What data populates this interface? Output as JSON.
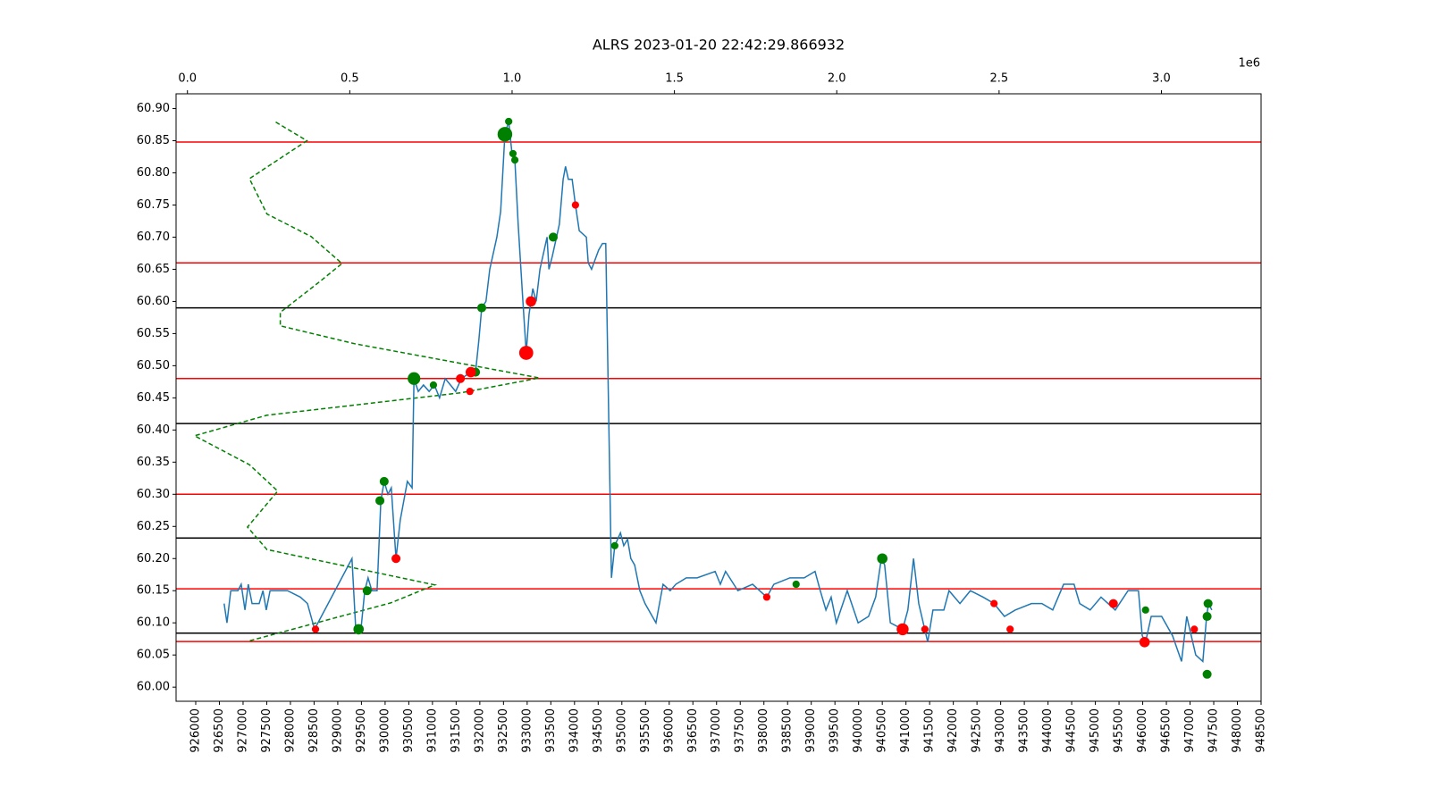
{
  "chart_data": {
    "type": "line",
    "title": "ALRS 2023-01-20 22:42:29.866932",
    "xlim": [
      925585,
      948500
    ],
    "xticks": [
      926000,
      926500,
      927000,
      927500,
      928000,
      928500,
      929000,
      929500,
      930000,
      930500,
      931000,
      931500,
      932000,
      932500,
      933000,
      933500,
      934000,
      934500,
      935000,
      935500,
      936000,
      936500,
      937000,
      937500,
      938000,
      938500,
      939000,
      939500,
      940000,
      940500,
      941000,
      941500,
      942000,
      942500,
      943000,
      943500,
      944000,
      944500,
      945000,
      945500,
      946000,
      946500,
      947000,
      947500,
      948000,
      948500
    ],
    "ylim": [
      59.978,
      60.923
    ],
    "yticks": [
      {
        "value": 60.0,
        "label": "60.00"
      },
      {
        "value": 60.05,
        "label": "60.05"
      },
      {
        "value": 60.1,
        "label": "60.10"
      },
      {
        "value": 60.15,
        "label": "60.15"
      },
      {
        "value": 60.2,
        "label": "60.20"
      },
      {
        "value": 60.25,
        "label": "60.25"
      },
      {
        "value": 60.3,
        "label": "60.30"
      },
      {
        "value": 60.35,
        "label": "60.35"
      },
      {
        "value": 60.4,
        "label": "60.40"
      },
      {
        "value": 60.45,
        "label": "60.45"
      },
      {
        "value": 60.5,
        "label": "60.50"
      },
      {
        "value": 60.55,
        "label": "60.55"
      },
      {
        "value": 60.6,
        "label": "60.60"
      },
      {
        "value": 60.65,
        "label": "60.65"
      },
      {
        "value": 60.7,
        "label": "60.70"
      },
      {
        "value": 60.75,
        "label": "60.75"
      },
      {
        "value": 60.8,
        "label": "60.80"
      },
      {
        "value": 60.85,
        "label": "60.85"
      },
      {
        "value": 60.9,
        "label": "60.90"
      }
    ],
    "x2lim": [
      -0.035,
      3.307
    ],
    "x2ticks": [
      {
        "value": 0,
        "label": "0.0"
      },
      0.5,
      {
        "value": 1,
        "label": "1.0"
      },
      1.5,
      {
        "value": 2,
        "label": "2.0"
      },
      2.5,
      {
        "value": 3,
        "label": "3.0"
      }
    ],
    "x2_offset_label": "1e6",
    "series": [
      {
        "color": "#1f77b4",
        "x": [
          926600,
          926660,
          926740,
          926890,
          926960,
          927040,
          927110,
          927190,
          927340,
          927420,
          927490,
          927570,
          927720,
          927940,
          928210,
          928360,
          928510,
          929300,
          929380,
          929490,
          929570,
          929640,
          929720,
          929830,
          929910,
          929980,
          930060,
          930130,
          930230,
          930320,
          930470,
          930570,
          930610,
          930700,
          930810,
          930930,
          931040,
          931150,
          931270,
          931490,
          931610,
          931810,
          931910,
          931980,
          932040,
          932130,
          932210,
          932360,
          932440,
          932530,
          932610,
          932680,
          932740,
          932810,
          932910,
          932980,
          933040,
          933120,
          933190,
          933270,
          933420,
          933460,
          933530,
          933680,
          933760,
          933810,
          933870,
          933950,
          934020,
          934100,
          934250,
          934290,
          934360,
          934510,
          934590,
          934660,
          934780,
          934850,
          934970,
          935040,
          935120,
          935190,
          935270,
          935380,
          935490,
          935720,
          935870,
          936020,
          936140,
          936360,
          936590,
          936970,
          937080,
          937190,
          937450,
          937760,
          938060,
          938210,
          938550,
          938850,
          939080,
          939190,
          939310,
          939420,
          939530,
          939760,
          939990,
          940210,
          940360,
          940480,
          940550,
          940670,
          940930,
          941040,
          941160,
          941270,
          941460,
          941570,
          941800,
          941910,
          942140,
          942360,
          942630,
          942860,
          943080,
          943310,
          943650,
          943870,
          944100,
          944330,
          944550,
          944670,
          944890,
          945120,
          945420,
          945690,
          945910,
          945990,
          946060,
          946180,
          946400,
          946630,
          946820,
          946930,
          947120,
          947270,
          947350,
          947390,
          947460
        ],
        "values": [
          60.13,
          60.1,
          60.15,
          60.15,
          60.16,
          60.12,
          60.16,
          60.13,
          60.13,
          60.15,
          60.12,
          60.15,
          60.15,
          60.15,
          60.14,
          60.13,
          60.09,
          60.2,
          60.09,
          60.09,
          60.15,
          60.17,
          60.15,
          60.15,
          60.29,
          60.32,
          60.3,
          60.31,
          60.2,
          60.26,
          60.32,
          60.31,
          60.48,
          60.46,
          60.47,
          60.46,
          60.47,
          60.45,
          60.48,
          60.46,
          60.48,
          60.49,
          60.49,
          60.54,
          60.59,
          60.6,
          60.65,
          60.7,
          60.74,
          60.86,
          60.88,
          60.83,
          60.82,
          60.72,
          60.6,
          60.52,
          60.58,
          60.62,
          60.6,
          60.65,
          60.7,
          60.65,
          60.67,
          60.72,
          60.79,
          60.81,
          60.79,
          60.79,
          60.75,
          60.71,
          60.7,
          60.66,
          60.65,
          60.68,
          60.69,
          60.69,
          60.17,
          60.22,
          60.24,
          60.22,
          60.23,
          60.2,
          60.19,
          60.15,
          60.13,
          60.1,
          60.16,
          60.15,
          60.16,
          60.17,
          60.17,
          60.18,
          60.16,
          60.18,
          60.15,
          60.16,
          60.14,
          60.16,
          60.17,
          60.17,
          60.18,
          60.15,
          60.12,
          60.14,
          60.1,
          60.15,
          60.1,
          60.11,
          60.14,
          60.2,
          60.19,
          60.1,
          60.09,
          60.12,
          60.2,
          60.13,
          60.07,
          60.12,
          60.12,
          60.15,
          60.13,
          60.15,
          60.14,
          60.13,
          60.11,
          60.12,
          60.13,
          60.13,
          60.12,
          60.16,
          60.16,
          60.13,
          60.12,
          60.14,
          60.12,
          60.15,
          60.15,
          60.08,
          60.07,
          60.11,
          60.11,
          60.08,
          60.04,
          60.11,
          60.05,
          60.04,
          60.11,
          60.13,
          60.12
        ]
      }
    ],
    "scatter": [
      {
        "color": "green",
        "x": [
          932530,
          932610,
          932700,
          932740,
          933550,
          932040,
          931910,
          930610,
          931020,
          929980,
          929890,
          934850,
          929620,
          929440,
          938680,
          940500,
          946060,
          947380,
          947360,
          947360
        ],
        "values": [
          60.86,
          60.88,
          60.83,
          60.82,
          60.7,
          60.59,
          60.49,
          60.48,
          60.47,
          60.32,
          60.29,
          60.22,
          60.15,
          60.09,
          60.16,
          60.2,
          60.12,
          60.13,
          60.11,
          60.02
        ],
        "sizes": [
          120,
          30,
          30,
          30,
          45,
          45,
          45,
          90,
          30,
          45,
          45,
          30,
          45,
          60,
          30,
          60,
          30,
          45,
          45,
          45
        ]
      },
      {
        "color": "red",
        "x": [
          934020,
          933080,
          932980,
          931810,
          931590,
          931790,
          930230,
          928530,
          938060,
          940930,
          941400,
          942860,
          943200,
          945380,
          946040,
          947090
        ],
        "values": [
          60.75,
          60.6,
          60.52,
          60.49,
          60.48,
          60.46,
          60.2,
          60.09,
          60.14,
          60.09,
          60.09,
          60.13,
          60.09,
          60.13,
          60.07,
          60.09
        ],
        "sizes": [
          30,
          60,
          110,
          60,
          45,
          30,
          45,
          30,
          30,
          80,
          30,
          30,
          30,
          45,
          60,
          30
        ]
      }
    ],
    "hlines": [
      {
        "color": "red",
        "values": [
          60.848,
          60.66,
          60.48,
          60.3,
          60.153,
          60.071
        ]
      },
      {
        "color": "black",
        "values": [
          60.59,
          60.41,
          60.232,
          60.084
        ]
      }
    ],
    "profile": {
      "color": "green",
      "axis": "x2",
      "dashed": true,
      "x": [
        0.272,
        0.368,
        0.191,
        0.245,
        0.381,
        0.476,
        0.408,
        0.286,
        0.286,
        0.517,
        1.084,
        0.844,
        0.245,
        0.022,
        0.191,
        0.278,
        0.185,
        0.245,
        0.762,
        0.626,
        0.191
      ],
      "values": [
        60.879,
        60.85,
        60.791,
        60.736,
        60.701,
        60.659,
        60.631,
        60.583,
        60.562,
        60.534,
        60.481,
        60.458,
        60.423,
        60.391,
        60.346,
        60.305,
        60.249,
        60.214,
        60.159,
        60.131,
        60.072
      ]
    }
  }
}
